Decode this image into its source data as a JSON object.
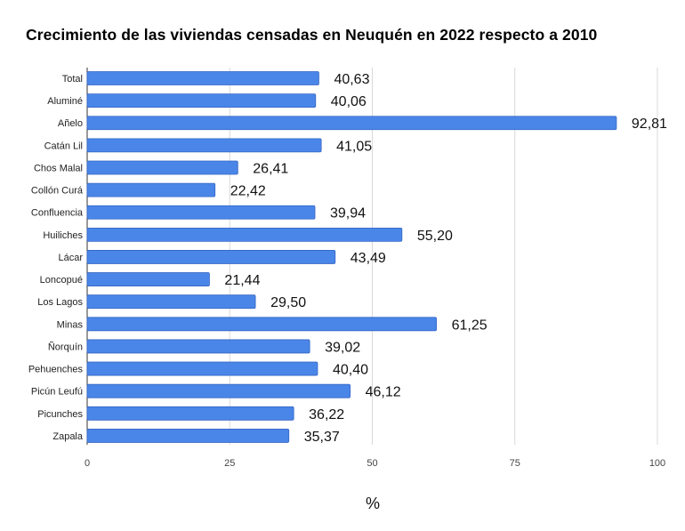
{
  "chart_data": {
    "type": "bar",
    "orientation": "horizontal",
    "title": "Crecimiento de las viviendas censadas en Neuquén en 2022 respecto a 2010",
    "xlabel": "%",
    "ylabel": "",
    "xlim": [
      0,
      100
    ],
    "xticks": [
      0,
      25,
      50,
      75,
      100
    ],
    "categories": [
      "Total",
      "Aluminé",
      "Añelo",
      "Catán Lil",
      "Chos Malal",
      "Collón Curá",
      "Confluencia",
      "Huiliches",
      "Lácar",
      "Loncopué",
      "Los Lagos",
      "Minas",
      "Ñorquín",
      "Pehuenches",
      "Picún Leufú",
      "Picunches",
      "Zapala"
    ],
    "values": [
      40.63,
      40.06,
      92.81,
      41.05,
      26.41,
      22.42,
      39.94,
      55.2,
      43.49,
      21.44,
      29.5,
      61.25,
      39.02,
      40.4,
      46.12,
      36.22,
      35.37
    ],
    "value_labels": [
      "40,63",
      "40,06",
      "92,81",
      "41,05",
      "26,41",
      "22,42",
      "39,94",
      "55,20",
      "43,49",
      "21,44",
      "29,50",
      "61,25",
      "39,02",
      "40,40",
      "46,12",
      "36,22",
      "35,37"
    ],
    "grid": "vertical",
    "legend": "none",
    "colors": {
      "bar": "#4a86e8",
      "bar_stroke": "#3566c4",
      "grid": "#d9d9d9",
      "axis": "#333333"
    }
  }
}
